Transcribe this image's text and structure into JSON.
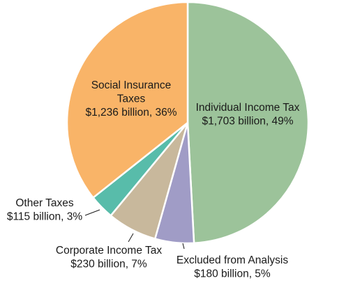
{
  "chart_data": {
    "type": "pie",
    "unit": "billion",
    "start_angle_deg": 0,
    "direction": "clockwise",
    "slices": [
      {
        "name": "Individual Income Tax",
        "value": 1703,
        "percent": 49,
        "color": "#9cc39a",
        "label_lines": [
          "Individual Income Tax",
          "$1,703 billion, 49%"
        ]
      },
      {
        "name": "Excluded from Analysis",
        "value": 180,
        "percent": 5,
        "color": "#a09cc6",
        "label_lines": [
          "Excluded from Analysis",
          "$180 billion, 5%"
        ]
      },
      {
        "name": "Corporate Income Tax",
        "value": 230,
        "percent": 7,
        "color": "#c8b89c",
        "label_lines": [
          "Corporate Income Tax",
          "$230 billion, 7%"
        ]
      },
      {
        "name": "Other Taxes",
        "value": 115,
        "percent": 3,
        "color": "#58bcaa",
        "label_lines": [
          "Other Taxes",
          "$115 billion, 3%"
        ]
      },
      {
        "name": "Social Insurance Taxes",
        "value": 1236,
        "percent": 36,
        "color": "#f9b468",
        "label_lines": [
          "Social Insurance",
          "Taxes",
          "$1,236 billion, 36%"
        ]
      }
    ]
  }
}
